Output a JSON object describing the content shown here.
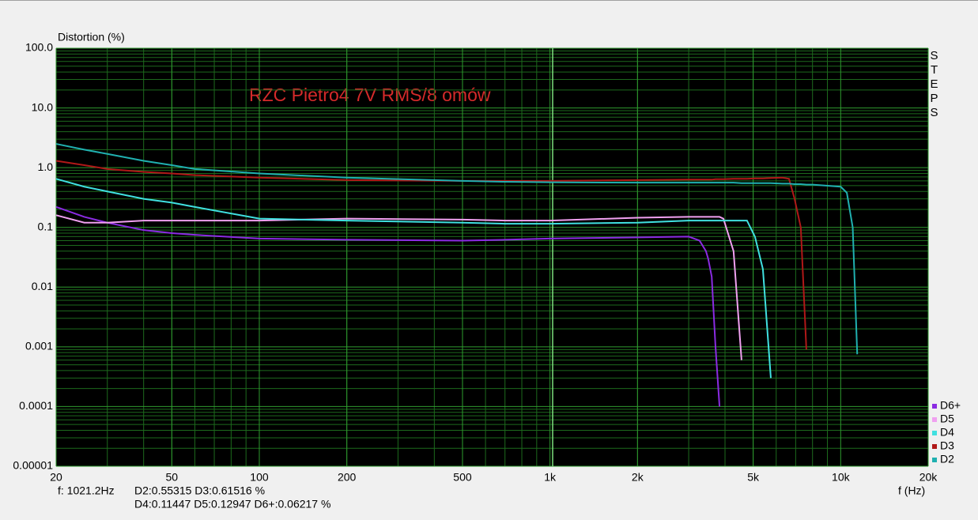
{
  "chart_data": {
    "type": "line",
    "y_label": "Distortion (%)",
    "x_label": "f (Hz)",
    "annotation": "RZC Pietro4 7V RMS/8 omów",
    "side_label": "STEPS",
    "readout": [
      "f: 1021.2Hz",
      "D2:0.55315  D3:0.61516 %",
      "D4:0.11447  D5:0.12947  D6+:0.06217 %"
    ],
    "cursor_x": 1021.2,
    "x_log": true,
    "y_log": true,
    "grid": true,
    "minor_grid": true,
    "legend": "bottom-right",
    "xlim": [
      20,
      20000
    ],
    "ylim": [
      1e-05,
      100
    ],
    "xticks": [
      20,
      50,
      100,
      200,
      500,
      {
        "value": 1000,
        "label": "1k"
      },
      {
        "value": 2000,
        "label": "2k"
      },
      {
        "value": 5000,
        "label": "5k"
      },
      {
        "value": 10000,
        "label": "10k"
      },
      {
        "value": 20000,
        "label": "20k"
      }
    ],
    "yticks": [
      {
        "value": 100,
        "label": "100.0"
      },
      {
        "value": 10,
        "label": "10.0"
      },
      {
        "value": 1,
        "label": "1.0"
      },
      0.1,
      0.01,
      0.001,
      0.0001,
      1e-05
    ],
    "x": [
      20,
      25,
      30,
      40,
      50,
      60,
      100,
      200,
      500,
      700,
      1000,
      2000,
      3000,
      3270,
      3440,
      3500,
      3600,
      3710,
      3830,
      3950,
      4280,
      4560,
      4760,
      5070,
      5400,
      5750,
      6300,
      6640,
      6940,
      7290,
      7620,
      8000,
      10000,
      10500,
      11000,
      11400
    ],
    "series": [
      {
        "name": "D6+",
        "color": "#8a2be2",
        "values": [
          0.22,
          0.15,
          0.12,
          0.09,
          0.08,
          0.075,
          0.065,
          0.062,
          0.06,
          0.062,
          0.065,
          0.068,
          0.07,
          0.06,
          0.04,
          0.03,
          0.015,
          0.001,
          0.0001,
          null,
          null,
          null,
          null,
          null,
          null,
          null,
          null,
          null,
          null,
          null,
          null,
          null,
          null,
          null,
          null,
          null
        ]
      },
      {
        "name": "D5",
        "color": "#f0a0f0",
        "values": [
          0.16,
          0.12,
          0.12,
          0.13,
          0.13,
          0.13,
          0.13,
          0.14,
          0.135,
          0.13,
          0.13,
          0.145,
          0.15,
          0.15,
          0.15,
          0.15,
          0.15,
          0.15,
          0.15,
          0.14,
          0.04,
          0.0006,
          null,
          null,
          null,
          null,
          null,
          null,
          null,
          null,
          null,
          null,
          null,
          null,
          null,
          null
        ]
      },
      {
        "name": "D4",
        "color": "#40e0e0",
        "values": [
          0.65,
          0.48,
          0.4,
          0.3,
          0.26,
          0.22,
          0.14,
          0.13,
          0.12,
          0.115,
          0.115,
          0.12,
          0.13,
          0.13,
          0.13,
          0.13,
          0.13,
          0.13,
          0.13,
          0.13,
          0.13,
          0.13,
          0.13,
          0.07,
          0.02,
          0.0003,
          null,
          null,
          null,
          null,
          null,
          null,
          null,
          null,
          null,
          null
        ]
      },
      {
        "name": "D3",
        "color": "#b01818",
        "values": [
          1.3,
          1.1,
          0.95,
          0.85,
          0.8,
          0.75,
          0.68,
          0.62,
          0.6,
          0.6,
          0.6,
          0.62,
          0.63,
          0.63,
          0.63,
          0.63,
          0.63,
          0.64,
          0.64,
          0.64,
          0.65,
          0.65,
          0.65,
          0.66,
          0.66,
          0.67,
          0.68,
          0.65,
          0.3,
          0.1,
          0.0009,
          null,
          null,
          null,
          null,
          null
        ]
      },
      {
        "name": "D2",
        "color": "#20b0b0",
        "values": [
          2.5,
          2.0,
          1.7,
          1.3,
          1.1,
          0.95,
          0.8,
          0.68,
          0.6,
          0.58,
          0.57,
          0.56,
          0.56,
          0.56,
          0.56,
          0.56,
          0.56,
          0.56,
          0.56,
          0.56,
          0.56,
          0.55,
          0.55,
          0.55,
          0.55,
          0.55,
          0.54,
          0.54,
          0.53,
          0.53,
          0.52,
          0.52,
          0.48,
          0.38,
          0.1,
          0.00075
        ]
      }
    ]
  }
}
